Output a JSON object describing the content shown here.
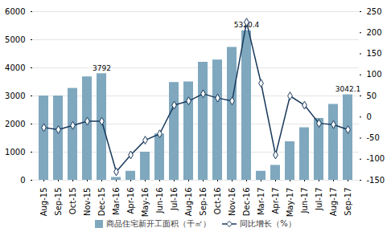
{
  "chart_data": {
    "type": "bar",
    "categories": [
      "Aug-15",
      "Sep-15",
      "Oct-15",
      "Nov-15",
      "Dec-15",
      "Mar-16",
      "Apr-16",
      "May-16",
      "Jun-16",
      "Jul-16",
      "Aug-16",
      "Sep-16",
      "Oct-16",
      "Nov-16",
      "Dec-16",
      "Mar-17",
      "Apr-17",
      "May-17",
      "Jun-17",
      "Jul-17",
      "Aug-17",
      "Sep-17"
    ],
    "series": [
      {
        "name": "商品住宅新开工面积（千㎡）",
        "type": "bar",
        "color": "#7fa8bf",
        "values": [
          3000,
          3000,
          3270,
          3680,
          3792,
          100,
          320,
          1000,
          1650,
          3480,
          3500,
          4200,
          4280,
          4730,
          5320,
          320,
          530,
          1370,
          1870,
          2200,
          2700,
          3042
        ]
      },
      {
        "name": "同比增长（%）",
        "type": "line",
        "axis": "y2",
        "color": "#1a3a5c",
        "marker": "diamond",
        "values": [
          -25,
          -30,
          -20,
          -10,
          -10,
          -130,
          -90,
          -55,
          -40,
          28,
          38,
          55,
          45,
          38,
          225,
          80,
          -90,
          50,
          28,
          -15,
          -18,
          -30
        ]
      }
    ],
    "ylim": [
      0,
      6000
    ],
    "yticks": [
      0,
      1000,
      2000,
      3000,
      4000,
      5000,
      6000
    ],
    "y2lim": [
      -150,
      250
    ],
    "y2ticks": [
      -150,
      -100,
      -50,
      0,
      50,
      100,
      150,
      200,
      250
    ],
    "grid": true,
    "legend": "bottom",
    "annotations": [
      {
        "category": "Dec-15",
        "text": "3792"
      },
      {
        "category": "Dec-16",
        "text": "5320.4"
      },
      {
        "category": "Sep-17",
        "text": "3042.1"
      }
    ]
  }
}
